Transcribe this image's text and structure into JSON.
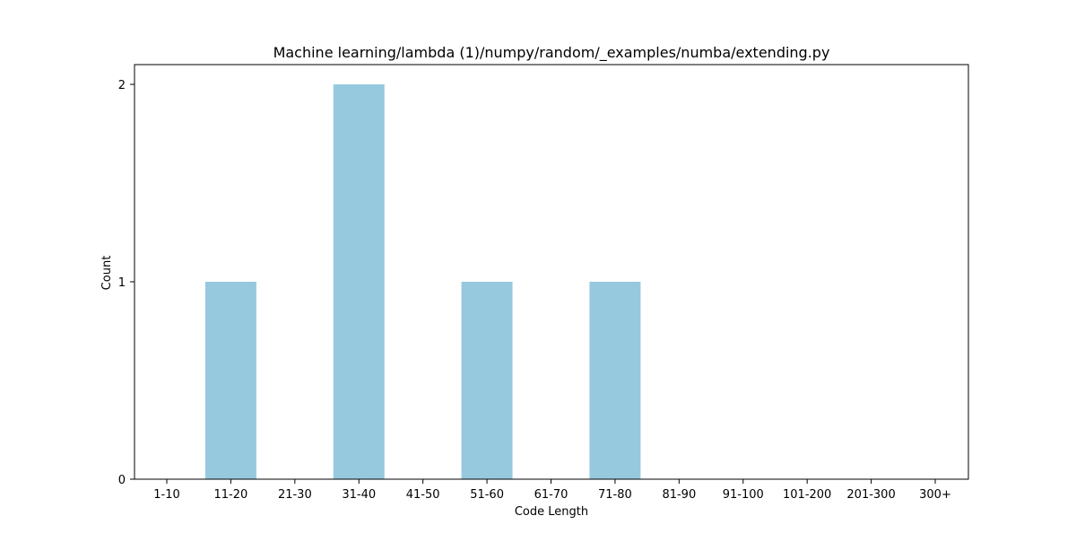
{
  "chart_data": {
    "type": "bar",
    "title": "Machine learning/lambda (1)/numpy/random/_examples/numba/extending.py",
    "xlabel": "Code Length",
    "ylabel": "Count",
    "categories": [
      "1-10",
      "11-20",
      "21-30",
      "31-40",
      "41-50",
      "51-60",
      "61-70",
      "71-80",
      "81-90",
      "91-100",
      "101-200",
      "201-300",
      "300+"
    ],
    "values": [
      0,
      1,
      0,
      2,
      0,
      1,
      0,
      1,
      0,
      0,
      0,
      0,
      0
    ],
    "ylim": [
      0,
      2
    ],
    "yticks": [
      0,
      1,
      2
    ],
    "grid": false,
    "colors": {
      "bar": "#96c9de",
      "axis": "#000000"
    }
  }
}
